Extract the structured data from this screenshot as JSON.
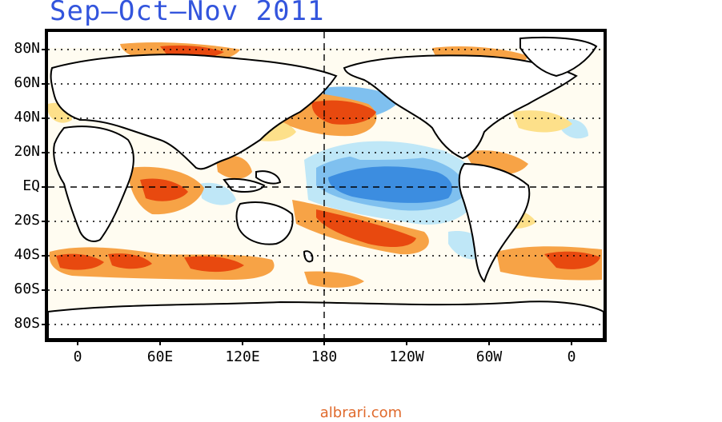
{
  "title": "Sep–Oct–Nov 2011",
  "footer": "albrari.com",
  "lat_labels": [
    "80N",
    "60N",
    "40N",
    "20N",
    "EQ",
    "20S",
    "40S",
    "60S",
    "80S"
  ],
  "lon_labels": [
    "0",
    "60E",
    "120E",
    "180",
    "120W",
    "60W",
    "0"
  ],
  "palette": {
    "strong_warm": "#e8490f",
    "warm": "#f7a346",
    "light_warm": "#fde08a",
    "light_cool": "#bfe7f7",
    "cool": "#7fc0ef",
    "strong_cool": "#3c8de0",
    "land": "#ffffff",
    "frame": "#000000"
  }
}
